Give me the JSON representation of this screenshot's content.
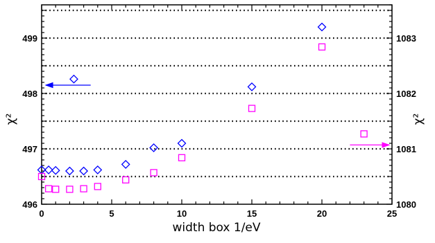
{
  "chart_data": {
    "type": "scatter",
    "xlabel": "width box 1/eV",
    "ylabel_left": "χ²",
    "ylabel_right": "χ²",
    "xlim": [
      0,
      25
    ],
    "ylim_left": [
      496,
      499.6
    ],
    "ylim_right": [
      1080,
      1083.6
    ],
    "x_ticks": [
      "0",
      "5",
      "10",
      "15",
      "20",
      "25"
    ],
    "y_ticks_left": [
      "496",
      "497",
      "498",
      "499"
    ],
    "y_ticks_right": [
      "1080",
      "1081",
      "1082",
      "1083"
    ],
    "grid": "dotted horizontal lines",
    "series": [
      {
        "axis": "left",
        "marker": "diamond",
        "color": "#0000ff",
        "x": [
          0,
          0.5,
          1,
          2,
          3,
          4,
          6,
          8,
          10,
          15,
          20
        ],
        "y": [
          496.62,
          496.62,
          496.61,
          496.6,
          496.6,
          496.62,
          496.72,
          497.02,
          497.1,
          498.12,
          499.2
        ]
      },
      {
        "axis": "right",
        "marker": "square",
        "color": "#ff00ff",
        "x": [
          0,
          0.5,
          1,
          2,
          3,
          4,
          6,
          8,
          10,
          15,
          20
        ],
        "y": [
          1080.5,
          1080.28,
          1080.27,
          1080.27,
          1080.28,
          1080.32,
          1080.44,
          1080.57,
          1080.84,
          1081.73,
          1082.84
        ]
      }
    ],
    "annotations": [
      {
        "series": "left",
        "marker": "diamond",
        "marker_x": 2.3,
        "marker_y": 498.26,
        "arrow": "left",
        "arrow_x_from": 3.5,
        "arrow_x_to": 0.3,
        "arrow_y": 498.15,
        "color": "#0000ff"
      },
      {
        "series": "right",
        "marker": "square",
        "marker_x": 23.0,
        "marker_y": 1081.27,
        "arrow": "right",
        "arrow_x_from": 22.0,
        "arrow_x_to": 24.8,
        "arrow_y": 1081.07,
        "color": "#ff00ff"
      }
    ]
  }
}
